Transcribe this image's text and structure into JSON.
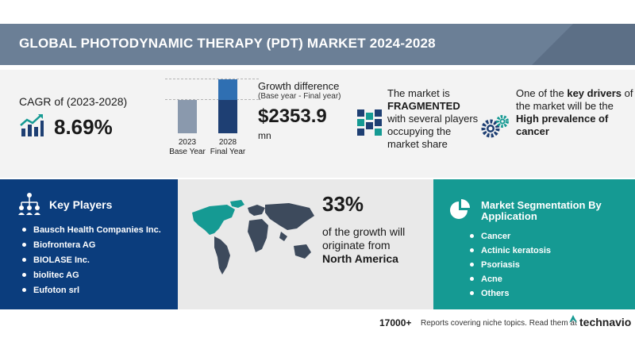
{
  "header": {
    "title": "GLOBAL PHOTODYNAMIC THERAPY (PDT) MARKET 2024-2028"
  },
  "cagr": {
    "label": "CAGR of (2023-2028)",
    "value": "8.69%",
    "icon": "growth-chart-icon"
  },
  "growth": {
    "title": "Growth difference",
    "subtitle": "(Base year - Final year)",
    "value": "$2353.9",
    "unit": "mn",
    "base_year": "2023",
    "base_year_label": "Base Year",
    "final_year": "2028",
    "final_year_label": "Final Year"
  },
  "market": {
    "line1": "The market is",
    "highlight": "FRAGMENTED",
    "line2": "with several players occupying the market share",
    "icon": "fragmented-blocks-icon"
  },
  "driver": {
    "line1": "One of the",
    "highlight1": "key drivers",
    "line2": "of the market will be the",
    "highlight2": "High prevalence of cancer",
    "icon": "gears-icon"
  },
  "players": {
    "title": "Key Players",
    "icon": "network-people-icon",
    "items": [
      "Bausch Health Companies Inc.",
      "Biofrontera AG",
      "BIOLASE Inc.",
      "biolitec AG",
      "Eufoton srl"
    ]
  },
  "geography": {
    "percent": "33%",
    "text": "of the growth will originate from",
    "region": "North America",
    "icon": "world-map-icon"
  },
  "segmentation": {
    "title": "Market Segmentation By Application",
    "icon": "pie-chart-icon",
    "items": [
      "Cancer",
      "Actinic keratosis",
      "Psoriasis",
      "Acne",
      "Others"
    ]
  },
  "footer": {
    "count": "17000+",
    "text": "Reports covering niche topics. Read them at",
    "brand": "technavio"
  },
  "colors": {
    "header_band": "#6b7f96",
    "players_bg": "#0b3d7d",
    "geo_bg": "#e9e9e9",
    "segment_bg": "#159a93",
    "accent_teal": "#159a93",
    "accent_navy": "#1e3f73"
  }
}
